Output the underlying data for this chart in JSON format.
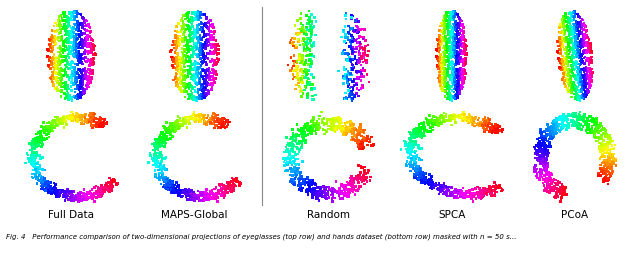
{
  "col_labels": [
    "Full Data",
    "MAPS-Global",
    "Random",
    "SPCA",
    "PCoA"
  ],
  "n_points": 700,
  "point_size": 3.5,
  "background_color": "#ffffff",
  "label_fontsize": 7.5,
  "caption": "Fig. 4   Performance comparison of two-dimensional projections of eyeglasses (top row) and hands dataset (bottom row) masked with n = 50 s...",
  "caption_fontsize": 5.0,
  "seed": 42
}
